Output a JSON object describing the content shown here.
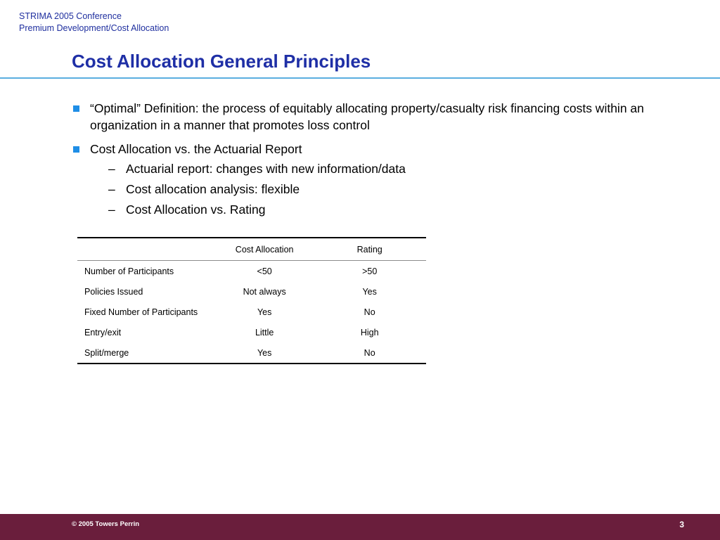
{
  "header": {
    "conference": "STRIMA 2005 Conference",
    "subject": "Premium Development/Cost Allocation"
  },
  "title": "Cost Allocation General Principles",
  "bullets": [
    {
      "text": "“Optimal” Definition:  the process of equitably allocating property/casualty risk financing costs within an organization in a manner that promotes loss control"
    },
    {
      "text": "Cost Allocation vs. the Actuarial Report",
      "sub": [
        "Actuarial report:  changes with new information/data",
        "Cost allocation analysis:  flexible",
        "Cost Allocation vs. Rating"
      ]
    }
  ],
  "table": {
    "headers": [
      "",
      "Cost Allocation",
      "Rating"
    ],
    "rows": [
      [
        "Number of Participants",
        "<50",
        ">50"
      ],
      [
        "Policies Issued",
        "Not always",
        "Yes"
      ],
      [
        "Fixed Number of Participants",
        "Yes",
        "No"
      ],
      [
        "Entry/exit",
        "Little",
        "High"
      ],
      [
        "Split/merge",
        "Yes",
        "No"
      ]
    ]
  },
  "footer": {
    "copyright": "© 2005 Towers Perrin",
    "page_number": "3"
  },
  "colors": {
    "title": "#1f2fa6",
    "rule": "#5aaee0",
    "bullet_marker": "#1f8ee6",
    "footer_bar": "#6a1e3c"
  },
  "icons": {
    "bullet": "square-bullet-icon",
    "sub_bullet": "dash-bullet-icon"
  }
}
